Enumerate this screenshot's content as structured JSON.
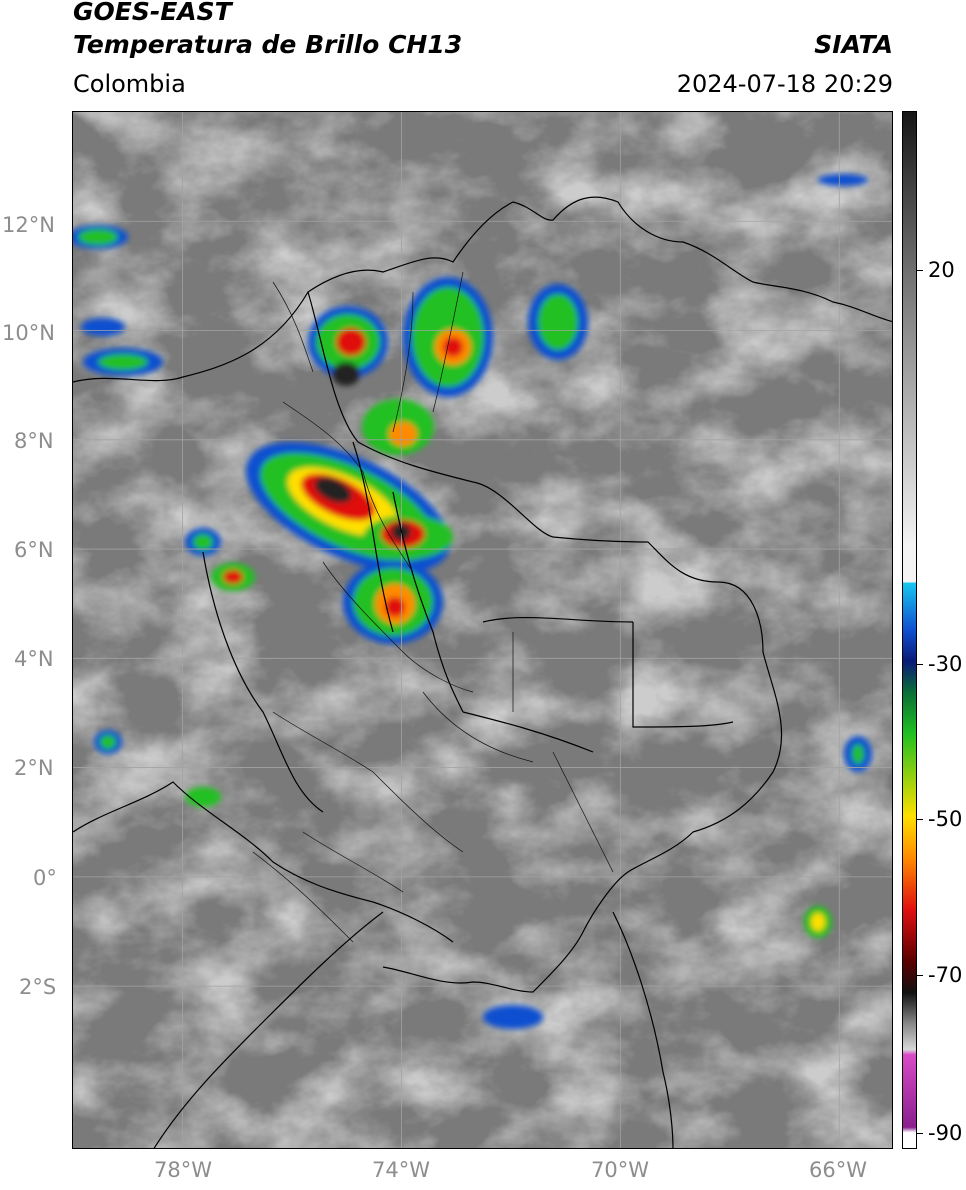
{
  "header": {
    "satellite": "GOES-EAST",
    "product": "Temperatura de Brillo CH13",
    "source": "SIATA",
    "region": "Colombia",
    "datetime": "2024-07-18 20:29"
  },
  "map": {
    "lat_labels": [
      "12°N",
      "10°N",
      "8°N",
      "6°N",
      "4°N",
      "2°N",
      "0°",
      "2°S"
    ],
    "lon_labels": [
      "78°W",
      "74°W",
      "70°W",
      "66°W"
    ],
    "lat_values": [
      12,
      10,
      8,
      6,
      4,
      2,
      0,
      -2
    ],
    "lon_values": [
      -78,
      -74,
      -70,
      -66
    ],
    "extent": {
      "lon_min": -80,
      "lon_max": -65,
      "lat_min": -5,
      "lat_max": 14
    },
    "gridlines": true,
    "features": [
      "country borders",
      "department borders",
      "coastline"
    ]
  },
  "colorbar": {
    "label_values": [
      20,
      -30,
      -50,
      -70,
      -90
    ],
    "labels": [
      "20",
      "-30",
      "-50",
      "-70",
      "-90"
    ],
    "range": [
      -92,
      32
    ],
    "colors": {
      "white": "#ffffff",
      "purple": "#8a1f8c",
      "magenta": "#d84bc6",
      "black": "#111111",
      "darkred": "#5a0000",
      "red": "#e01010",
      "orange": "#ff8a00",
      "yellow": "#ffe000",
      "green": "#20c020",
      "darkgreen": "#0a6e38",
      "navy": "#0a1a78",
      "blue": "#1050d0",
      "cyan": "#18c8f0",
      "lightgray": "#f4f4f4",
      "gray": "#7e7e7e",
      "darkgray": "#161616"
    }
  }
}
